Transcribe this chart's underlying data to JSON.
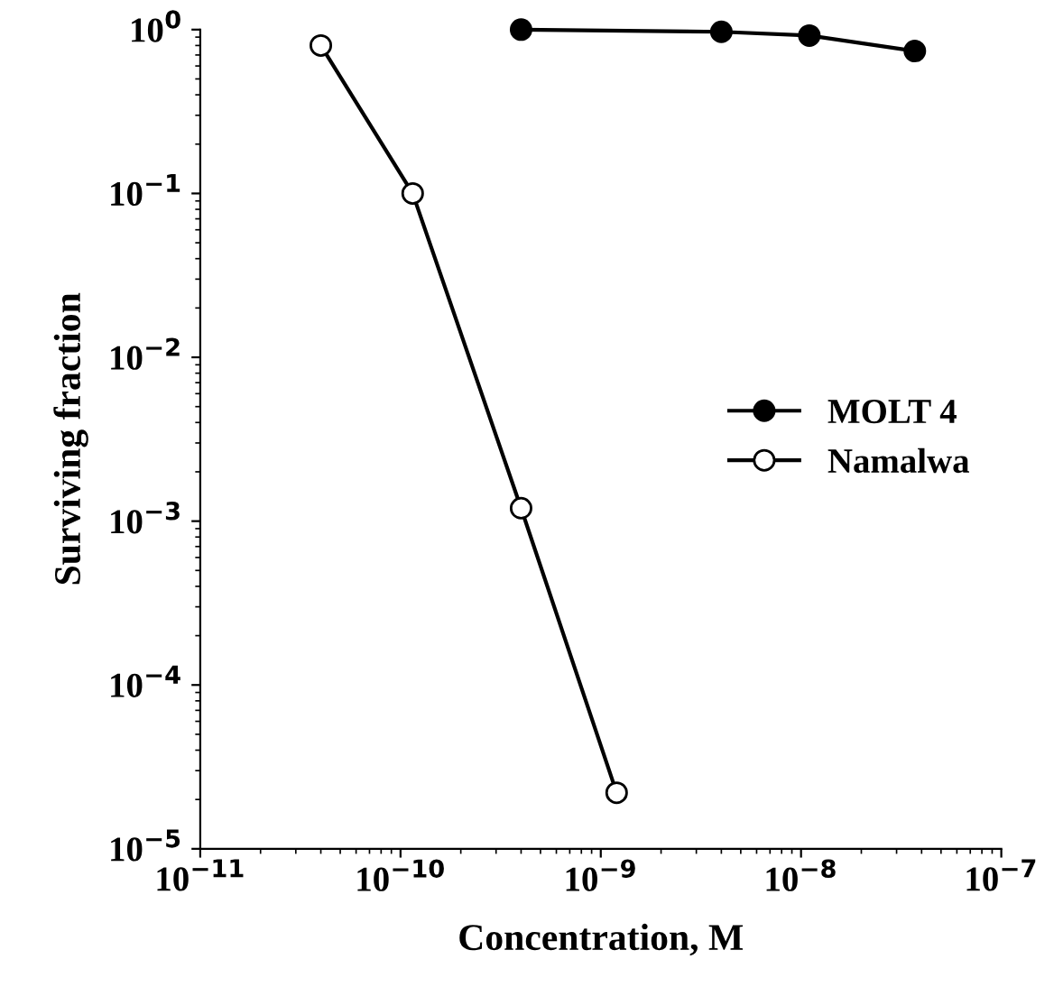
{
  "chart_data": {
    "type": "line",
    "xlabel": "Concentration, M",
    "ylabel": "Surviving fraction",
    "log": "xy",
    "xlim": [
      1e-11,
      1e-07
    ],
    "xticks": [
      {
        "value": 1e-11,
        "label": "10$^{−11}$"
      },
      {
        "value": 1e-10,
        "label": "10$^{−10}$"
      },
      {
        "value": 1e-09,
        "label": "10$^{−9}$"
      },
      {
        "value": 1e-08,
        "label": "10$^{−8}$"
      },
      {
        "value": 1e-07,
        "label": "10$^{−7}$"
      }
    ],
    "ylim": [
      1e-05,
      1
    ],
    "yticks": [
      {
        "value": 1e-05,
        "label": "10$^{−5}$"
      },
      {
        "value": 0.0001,
        "label": "10$^{−4}$"
      },
      {
        "value": 0.001,
        "label": "10$^{−3}$"
      },
      {
        "value": 0.01,
        "label": "10$^{−2}$"
      },
      {
        "value": 0.1,
        "label": "10$^{−1}$"
      },
      {
        "value": 1,
        "label": "10$^{0}$"
      }
    ],
    "grid": false,
    "legend": "right",
    "marker": "circle",
    "line_style": "solid",
    "series": [
      {
        "name": "MOLT 4",
        "color": "#000000",
        "x": [
          4e-10,
          4e-09,
          1.1e-08,
          3.7e-08
        ],
        "values": [
          1.0,
          0.97,
          0.92,
          0.74
        ]
      },
      {
        "name": "Namalwa",
        "color": "#000000",
        "x": [
          4e-11,
          1.15e-10,
          4e-10,
          1.2e-09
        ],
        "values": [
          0.8,
          0.1,
          0.0012,
          2.2e-05
        ]
      }
    ]
  }
}
